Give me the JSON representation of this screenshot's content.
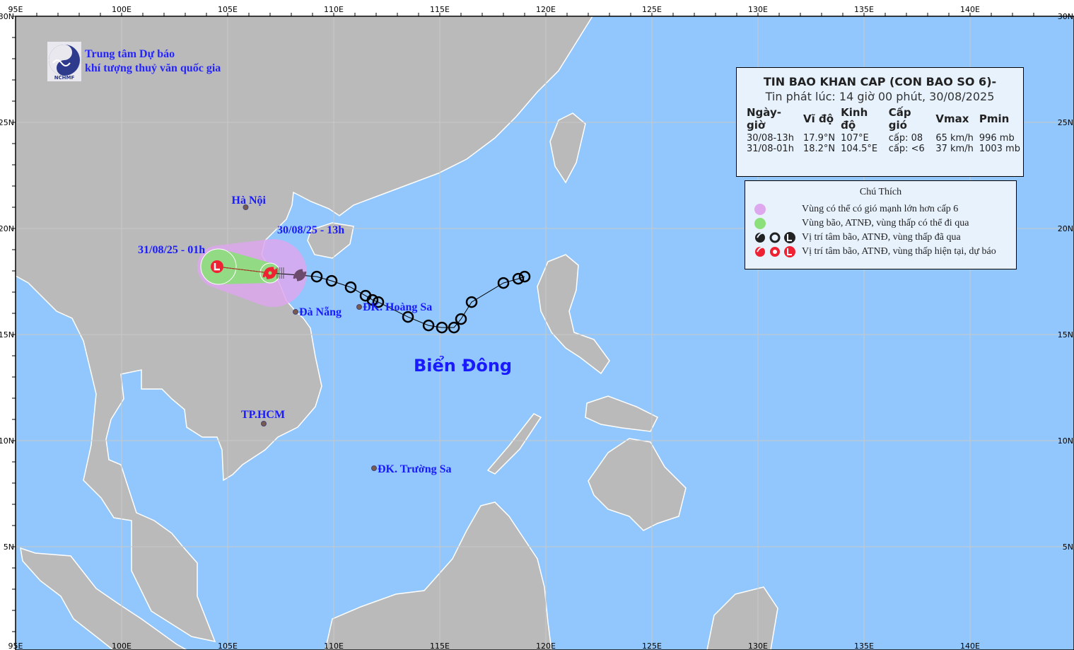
{
  "logo": {
    "abbr": "NCHMF",
    "line1": "Trung tâm Dự báo",
    "line2": "khí tượng thuỷ văn quốc gia"
  },
  "axes": {
    "lon_ticks": [
      "95E",
      "100E",
      "105E",
      "110E",
      "115E",
      "120E",
      "125E",
      "130E",
      "135E",
      "140E"
    ],
    "lon_values": [
      95,
      100,
      105,
      110,
      115,
      120,
      125,
      130,
      135,
      140
    ],
    "lat_ticks": [
      "30N",
      "25N",
      "20N",
      "15N",
      "10N",
      "5N"
    ],
    "lat_values": [
      30,
      25,
      20,
      15,
      10,
      5
    ]
  },
  "info": {
    "title": "TIN BAO KHAN CAP (CON BAO SO 6)-",
    "issued": "Tin phát lúc: 14 giờ 00 phút, 30/08/2025",
    "headers": [
      "Ngày-giờ",
      "Vĩ độ",
      "Kinh độ",
      "Cấp gió",
      "Vmax",
      "Pmin"
    ],
    "rows": [
      [
        "30/08-13h",
        "17.9°N",
        "107°E",
        "cấp: 08",
        "65 km/h",
        "996 mb"
      ],
      [
        "31/08-01h",
        "18.2°N",
        "104.5°E",
        "cấp: <6",
        "37 km/h",
        "1003 mb"
      ]
    ]
  },
  "legend": {
    "title": "Chú Thích",
    "items": [
      {
        "label": "Vùng có thể có gió mạnh lớn hơn cấp 6",
        "color": "#dda8ee"
      },
      {
        "label": "Vùng bão, ATNĐ, vùng thấp có thể đi qua",
        "color": "#8ce07a"
      },
      {
        "label": "Vị trí tâm bão, ATNĐ, vùng thấp đã qua",
        "color": "#222222"
      },
      {
        "label": "Vị trí tâm bão, ATNĐ, vùng thấp hiện tại, dự báo",
        "color": "#ee2233"
      }
    ]
  },
  "places": [
    {
      "name": "Hà Nội",
      "lon": 105.85,
      "lat": 21.0
    },
    {
      "name": "Đà Nẵng",
      "lon": 108.2,
      "lat": 16.07
    },
    {
      "name": "ĐK. Hoàng Sa",
      "lon": 111.2,
      "lat": 16.3
    },
    {
      "name": "TP.HCM",
      "lon": 106.7,
      "lat": 10.8
    },
    {
      "name": "ĐK. Trường Sa",
      "lon": 111.9,
      "lat": 8.7
    }
  ],
  "sea_label": "Biển Đông",
  "track": {
    "current": {
      "label": "30/08/25 - 13h",
      "lon": 107.0,
      "lat": 17.9
    },
    "forecast": {
      "label": "31/08/25 - 01h",
      "lon": 104.5,
      "lat": 18.2
    },
    "past_storm": {
      "lon": 108.4,
      "lat": 17.8
    },
    "past": [
      [
        109.2,
        17.73
      ],
      [
        109.9,
        17.53
      ],
      [
        110.8,
        17.23
      ],
      [
        111.5,
        16.83
      ],
      [
        111.83,
        16.63
      ],
      [
        112.1,
        16.53
      ],
      [
        113.5,
        15.83
      ],
      [
        114.47,
        15.43
      ],
      [
        115.1,
        15.33
      ],
      [
        115.67,
        15.33
      ],
      [
        116.0,
        15.73
      ],
      [
        116.5,
        16.53
      ],
      [
        118.0,
        17.43
      ],
      [
        118.7,
        17.63
      ],
      [
        119.0,
        17.73
      ]
    ]
  },
  "colors": {
    "sea": "#91c7fd",
    "land": "#bababa",
    "wind_zone": "#dda8ee",
    "storm_zone": "#8ce07a",
    "current": "#ee2233",
    "past": "#000000",
    "label": "#1a1aff"
  }
}
